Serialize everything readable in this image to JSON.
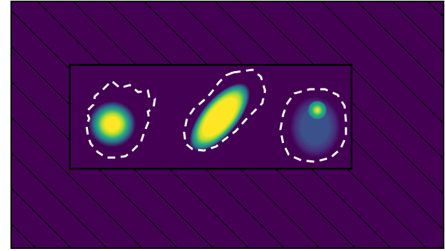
{
  "colors": {
    "background": "#440154",
    "hatch": "#000000",
    "frame": "#000000",
    "contour": "#ffffff",
    "viridis": [
      "#440154",
      "#472c7a",
      "#3b518b",
      "#2c718e",
      "#21908d",
      "#27ad81",
      "#5cc863",
      "#aadc32",
      "#fde725"
    ]
  },
  "view": {
    "hatch_pattern": "diagonal-lines",
    "contour_style": "dashed"
  },
  "blobs": [
    {
      "id": "left",
      "shape": "round-spot",
      "peak_level": 1.0
    },
    {
      "id": "middle",
      "shape": "elongated-diagonal",
      "peak_level": 1.0
    },
    {
      "id": "right",
      "shape": "oval-faint",
      "peak_level": 0.75
    }
  ]
}
